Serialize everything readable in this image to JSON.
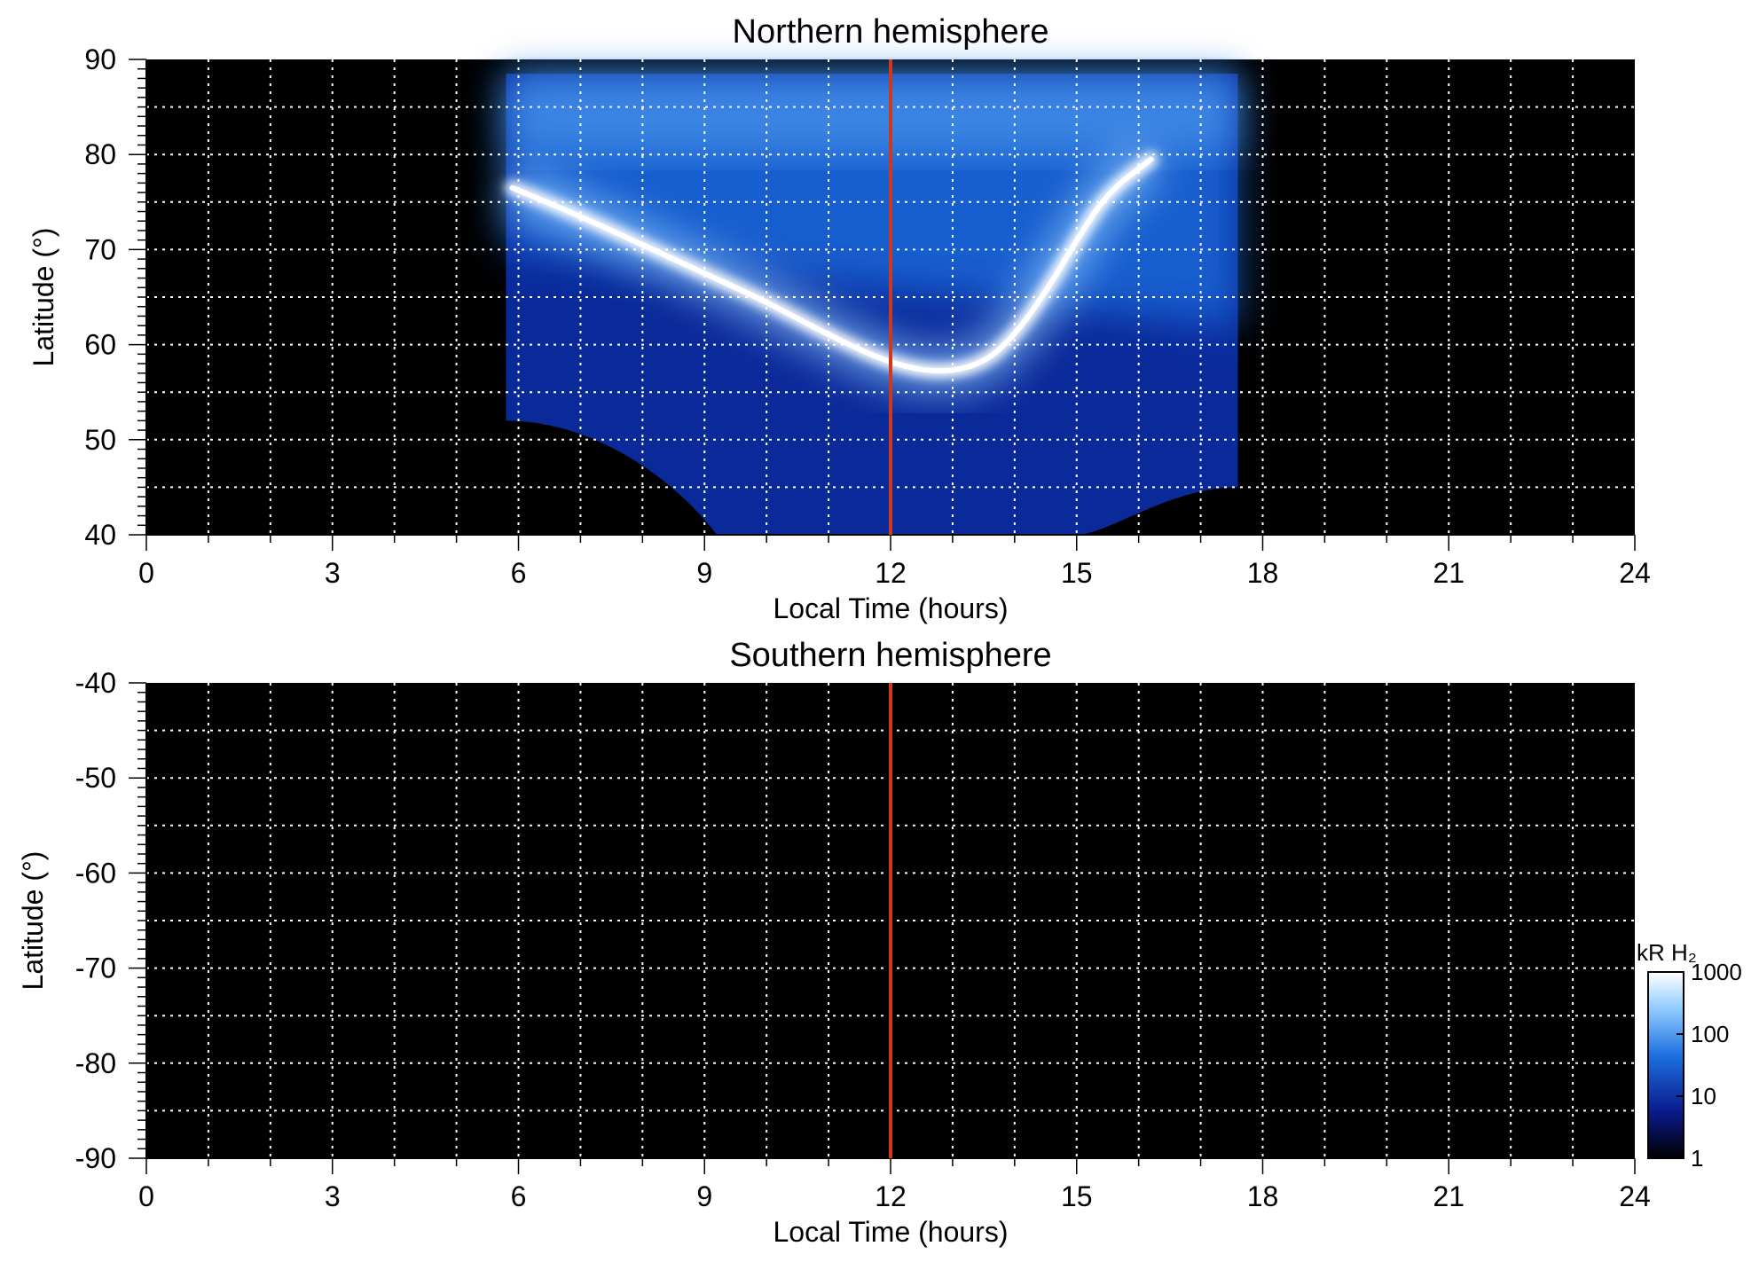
{
  "chart_data": [
    {
      "type": "heatmap",
      "panel": "north",
      "title": "Northern hemisphere",
      "xlabel": "Local Time (hours)",
      "ylabel": "Latitude (°)",
      "xlim": [
        0,
        24
      ],
      "ylim": [
        40,
        90
      ],
      "xticks": [
        "0",
        "3",
        "6",
        "9",
        "12",
        "15",
        "18",
        "21",
        "24"
      ],
      "yticks": [
        "40",
        "50",
        "60",
        "70",
        "80",
        "90"
      ],
      "grid": true,
      "background": "#000000",
      "observed_coverage_lt": [
        5.8,
        17.6
      ],
      "auroral_oval": {
        "points_lt_lat": [
          [
            5.9,
            76.5
          ],
          [
            7.0,
            73.5
          ],
          [
            8.0,
            70.5
          ],
          [
            9.0,
            67.5
          ],
          [
            10.0,
            64.5
          ],
          [
            11.0,
            61.0
          ],
          [
            12.0,
            58.0
          ],
          [
            12.8,
            57.0
          ],
          [
            13.5,
            58.0
          ],
          [
            14.0,
            61.0
          ],
          [
            14.5,
            65.5
          ],
          [
            15.0,
            71.0
          ],
          [
            15.5,
            76.0
          ],
          [
            16.2,
            79.5
          ]
        ],
        "peak_brightness_kR": 1000
      },
      "noon_marker_lt": 12,
      "noon_marker_color": "#d0381a"
    },
    {
      "type": "heatmap",
      "panel": "south",
      "title": "Southern hemisphere",
      "xlabel": "Local Time (hours)",
      "ylabel": "Latitude (°)",
      "xlim": [
        0,
        24
      ],
      "ylim": [
        -90,
        -40
      ],
      "xticks": [
        "0",
        "3",
        "6",
        "9",
        "12",
        "15",
        "18",
        "21",
        "24"
      ],
      "yticks": [
        "-40",
        "-50",
        "-60",
        "-70",
        "-80",
        "-90"
      ],
      "grid": true,
      "background": "#000000",
      "observed_coverage_lt": [],
      "noon_marker_lt": 12,
      "noon_marker_color": "#d0381a"
    }
  ],
  "colorbar": {
    "label": "kR H₂",
    "scale": "log",
    "range": [
      1,
      1000
    ],
    "tick_labels": [
      "1",
      "10",
      "100",
      "1000"
    ],
    "colors": [
      "#000000",
      "#0a1a8c",
      "#1d6fe0",
      "#8fcaff",
      "#ffffff"
    ]
  }
}
